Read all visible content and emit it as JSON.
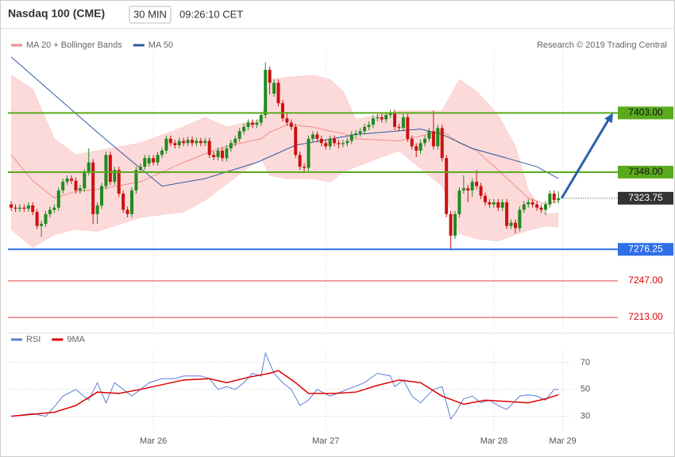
{
  "header": {
    "title": "Nasdaq 100 (CME)",
    "interval": "30 MIN",
    "time": "09:26:10 CET"
  },
  "chart_data": [
    {
      "type": "candlestick",
      "credit": "Research © 2019 Trading Central",
      "xlim": [
        -0.75,
        139.3
      ],
      "ylim": [
        7202,
        7460
      ],
      "up_color": "#1f8a1f",
      "down_color": "#cc1111",
      "xticks": [
        {
          "value": 33,
          "label": "Mar 26"
        },
        {
          "value": 73,
          "label": "Mar 27"
        },
        {
          "value": 112,
          "label": "Mar 28"
        },
        {
          "value": 128,
          "label": "Mar 29"
        }
      ],
      "open": [
        7318,
        7315,
        7314,
        7315,
        7314,
        7317,
        7311,
        7298,
        7300,
        7309,
        7313,
        7315,
        7331,
        7339,
        7342,
        7340,
        7331,
        7333,
        7348,
        7357,
        7309,
        7317,
        7335,
        7364,
        7339,
        7350,
        7328,
        7313,
        7309,
        7331,
        7350,
        7353,
        7356,
        7361,
        7357,
        7364,
        7368,
        7379,
        7375,
        7373,
        7377,
        7375,
        7378,
        7375,
        7377,
        7375,
        7377,
        7364,
        7362,
        7368,
        7361,
        7370,
        7375,
        7379,
        7386,
        7390,
        7394,
        7392,
        7394,
        7401,
        7443,
        7421,
        7431,
        7412,
        7398,
        7394,
        7390,
        7364,
        7353,
        7352,
        7379,
        7383,
        7379,
        7375,
        7372,
        7379,
        7375,
        7374,
        7375,
        7377,
        7383,
        7384,
        7386,
        7390,
        7392,
        7398,
        7399,
        7397,
        7401,
        7403,
        7390,
        7389,
        7399,
        7379,
        7372,
        7368,
        7375,
        7379,
        7386,
        7372,
        7389,
        7361,
        7309,
        7289,
        7309,
        7331,
        7333,
        7331,
        7339,
        7335,
        7326,
        7320,
        7318,
        7320,
        7315,
        7320,
        7298,
        7301,
        7296,
        7313,
        7318,
        7320,
        7318,
        7315,
        7313,
        7318,
        7328,
        7322
      ],
      "high": [
        7321,
        7318,
        7318,
        7318,
        7320,
        7320,
        7314,
        7303,
        7312,
        7316,
        7318,
        7334,
        7342,
        7345,
        7345,
        7343,
        7336,
        7351,
        7370,
        7360,
        7320,
        7338,
        7367,
        7367,
        7353,
        7353,
        7331,
        7316,
        7334,
        7353,
        7356,
        7364,
        7364,
        7364,
        7367,
        7371,
        7382,
        7382,
        7378,
        7380,
        7380,
        7381,
        7381,
        7380,
        7380,
        7380,
        7380,
        7367,
        7371,
        7371,
        7373,
        7378,
        7382,
        7389,
        7393,
        7397,
        7397,
        7397,
        7404,
        7450,
        7446,
        7434,
        7434,
        7415,
        7404,
        7397,
        7393,
        7367,
        7356,
        7382,
        7386,
        7386,
        7382,
        7378,
        7382,
        7382,
        7378,
        7378,
        7380,
        7386,
        7387,
        7389,
        7393,
        7395,
        7401,
        7402,
        7402,
        7404,
        7406,
        7406,
        7393,
        7402,
        7402,
        7382,
        7375,
        7378,
        7382,
        7389,
        7405,
        7392,
        7392,
        7364,
        7312,
        7312,
        7334,
        7345,
        7336,
        7342,
        7350,
        7338,
        7329,
        7323,
        7323,
        7323,
        7323,
        7323,
        7304,
        7304,
        7316,
        7321,
        7323,
        7323,
        7321,
        7318,
        7321,
        7331,
        7331,
        7330
      ],
      "low": [
        7312,
        7311,
        7311,
        7311,
        7311,
        7308,
        7295,
        7288,
        7297,
        7306,
        7310,
        7312,
        7328,
        7336,
        7337,
        7328,
        7328,
        7330,
        7345,
        7300,
        7300,
        7314,
        7332,
        7336,
        7336,
        7325,
        7310,
        7306,
        7306,
        7328,
        7347,
        7350,
        7353,
        7354,
        7354,
        7361,
        7365,
        7372,
        7370,
        7370,
        7372,
        7372,
        7372,
        7372,
        7372,
        7372,
        7361,
        7359,
        7359,
        7358,
        7358,
        7367,
        7372,
        7376,
        7383,
        7387,
        7389,
        7389,
        7391,
        7398,
        7420,
        7418,
        7409,
        7395,
        7391,
        7387,
        7361,
        7350,
        7348,
        7349,
        7376,
        7376,
        7372,
        7369,
        7369,
        7372,
        7370,
        7371,
        7372,
        7374,
        7380,
        7381,
        7383,
        7387,
        7389,
        7395,
        7394,
        7394,
        7398,
        7387,
        7386,
        7386,
        7376,
        7369,
        7362,
        7365,
        7372,
        7376,
        7369,
        7369,
        7358,
        7306,
        7276,
        7286,
        7306,
        7328,
        7320,
        7325,
        7332,
        7323,
        7317,
        7315,
        7315,
        7312,
        7312,
        7295,
        7295,
        7291,
        7293,
        7310,
        7315,
        7315,
        7312,
        7310,
        7308,
        7315,
        7319,
        7319
      ],
      "close": [
        7315,
        7314,
        7315,
        7314,
        7317,
        7311,
        7298,
        7300,
        7309,
        7313,
        7315,
        7331,
        7339,
        7342,
        7340,
        7331,
        7333,
        7348,
        7357,
        7309,
        7317,
        7335,
        7364,
        7339,
        7350,
        7328,
        7313,
        7309,
        7331,
        7350,
        7353,
        7361,
        7361,
        7357,
        7364,
        7368,
        7379,
        7375,
        7373,
        7377,
        7375,
        7378,
        7375,
        7377,
        7375,
        7377,
        7364,
        7362,
        7368,
        7361,
        7370,
        7375,
        7379,
        7386,
        7390,
        7394,
        7392,
        7394,
        7401,
        7443,
        7431,
        7431,
        7412,
        7398,
        7394,
        7390,
        7364,
        7353,
        7352,
        7379,
        7383,
        7379,
        7375,
        7372,
        7379,
        7375,
        7374,
        7375,
        7377,
        7383,
        7384,
        7386,
        7390,
        7392,
        7398,
        7399,
        7397,
        7401,
        7403,
        7390,
        7389,
        7399,
        7379,
        7372,
        7368,
        7375,
        7379,
        7386,
        7372,
        7389,
        7361,
        7309,
        7289,
        7309,
        7331,
        7333,
        7331,
        7339,
        7335,
        7326,
        7320,
        7318,
        7320,
        7315,
        7320,
        7298,
        7301,
        7296,
        7313,
        7318,
        7320,
        7318,
        7315,
        7313,
        7318,
        7328,
        7322,
        7323.75
      ],
      "series": [
        {
          "name": "MA 20 + Bollinger Bands",
          "color": "#f28b8b",
          "band_color": "#fbd3d3",
          "x": [
            0,
            5,
            10,
            15,
            20,
            30,
            40,
            45,
            50,
            58,
            60,
            64,
            70,
            74,
            77,
            80,
            90,
            100,
            104,
            108,
            113,
            117,
            120,
            124,
            127
          ],
          "values": [
            7364,
            7340,
            7324,
            7330,
            7332,
            7339,
            7357,
            7365,
            7372,
            7379,
            7385,
            7392,
            7390,
            7386,
            7384,
            7379,
            7377,
            7386,
            7375,
            7368,
            7350,
            7335,
            7324,
            7318,
            7321
          ],
          "upper": [
            7438,
            7425,
            7379,
            7364,
            7368,
            7375,
            7390,
            7399,
            7390,
            7397,
            7434,
            7436,
            7438,
            7434,
            7423,
            7397,
            7405,
            7405,
            7434,
            7423,
            7401,
            7372,
            7331,
            7309,
            7310
          ],
          "lower": [
            7295,
            7278,
            7290,
            7295,
            7293,
            7306,
            7311,
            7322,
            7337,
            7361,
            7345,
            7342,
            7342,
            7339,
            7348,
            7353,
            7368,
            7335,
            7291,
            7286,
            7284,
            7290,
            7294,
            7298,
            7297
          ]
        },
        {
          "name": "MA 50",
          "color": "#2f5a9e",
          "x": [
            0,
            10,
            20,
            25,
            35,
            45,
            57,
            66,
            80,
            95,
            100,
            107,
            115,
            122,
            127
          ],
          "values": [
            7455,
            7420,
            7385,
            7368,
            7335,
            7342,
            7357,
            7373,
            7383,
            7388,
            7383,
            7370,
            7361,
            7353,
            7342
          ]
        }
      ],
      "levels": [
        {
          "value": 7403,
          "label": "7403.00",
          "color": "#5aaa1e",
          "box": true,
          "text_color": "#111"
        },
        {
          "value": 7348,
          "label": "7348.00",
          "color": "#5aaa1e",
          "box": true,
          "text_color": "#111"
        },
        {
          "value": 7323.75,
          "label": "7323.75",
          "color": "#333333",
          "box": true,
          "text_color": "#fff",
          "dotted": true
        },
        {
          "value": 7276.25,
          "label": "7276.25",
          "color": "#2f6fe8",
          "box": true,
          "text_color": "#fff"
        },
        {
          "value": 7247,
          "label": "7247.00",
          "color": "#e23b3b",
          "box": false,
          "text_color": "#d00"
        },
        {
          "value": 7213,
          "label": "7213.00",
          "color": "#e23b3b",
          "box": false,
          "text_color": "#d00"
        }
      ],
      "arrow_color": "#2b5fad"
    },
    {
      "type": "line",
      "xlim": [
        -0.75,
        139.3
      ],
      "ylim": [
        18,
        80
      ],
      "yticks": [
        30,
        50,
        70
      ],
      "grid": true,
      "xticks": [
        {
          "value": 33,
          "label": "Mar 26"
        },
        {
          "value": 73,
          "label": "Mar 27"
        },
        {
          "value": 112,
          "label": "Mar 28"
        },
        {
          "value": 128,
          "label": "Mar 29"
        }
      ],
      "series": [
        {
          "name": "RSI",
          "color": "#5b7fd6",
          "x": [
            0,
            5,
            8,
            10,
            12,
            15,
            18,
            20,
            22,
            24,
            26,
            28,
            30,
            32,
            35,
            38,
            40,
            44,
            46,
            48,
            50,
            52,
            54,
            56,
            58,
            59,
            61,
            63,
            65,
            67,
            69,
            71,
            74,
            78,
            82,
            85,
            88,
            89,
            91,
            93,
            95,
            98,
            100,
            102,
            103,
            105,
            107,
            109,
            111,
            113,
            115,
            118,
            120,
            122,
            124,
            126,
            127
          ],
          "values": [
            30,
            32,
            30,
            37,
            45,
            50,
            42,
            55,
            40,
            55,
            50,
            45,
            50,
            55,
            58,
            58,
            60,
            60,
            58,
            50,
            52,
            50,
            55,
            62,
            60,
            77,
            62,
            55,
            50,
            38,
            42,
            50,
            45,
            50,
            55,
            62,
            60,
            52,
            57,
            45,
            40,
            50,
            52,
            28,
            32,
            43,
            45,
            40,
            42,
            38,
            35,
            45,
            46,
            45,
            42,
            50,
            50
          ]
        },
        {
          "name": "9MA",
          "color": "#e00000",
          "x": [
            0,
            10,
            15,
            20,
            25,
            30,
            40,
            46,
            50,
            55,
            60,
            62,
            66,
            69,
            75,
            80,
            85,
            90,
            95,
            100,
            105,
            110,
            115,
            120,
            124,
            127
          ],
          "values": [
            30,
            33,
            38,
            48,
            47,
            50,
            57,
            58,
            55,
            59,
            62,
            64,
            55,
            47,
            47,
            48,
            53,
            57,
            55,
            45,
            39,
            42,
            41,
            40,
            43,
            46
          ]
        }
      ]
    }
  ]
}
